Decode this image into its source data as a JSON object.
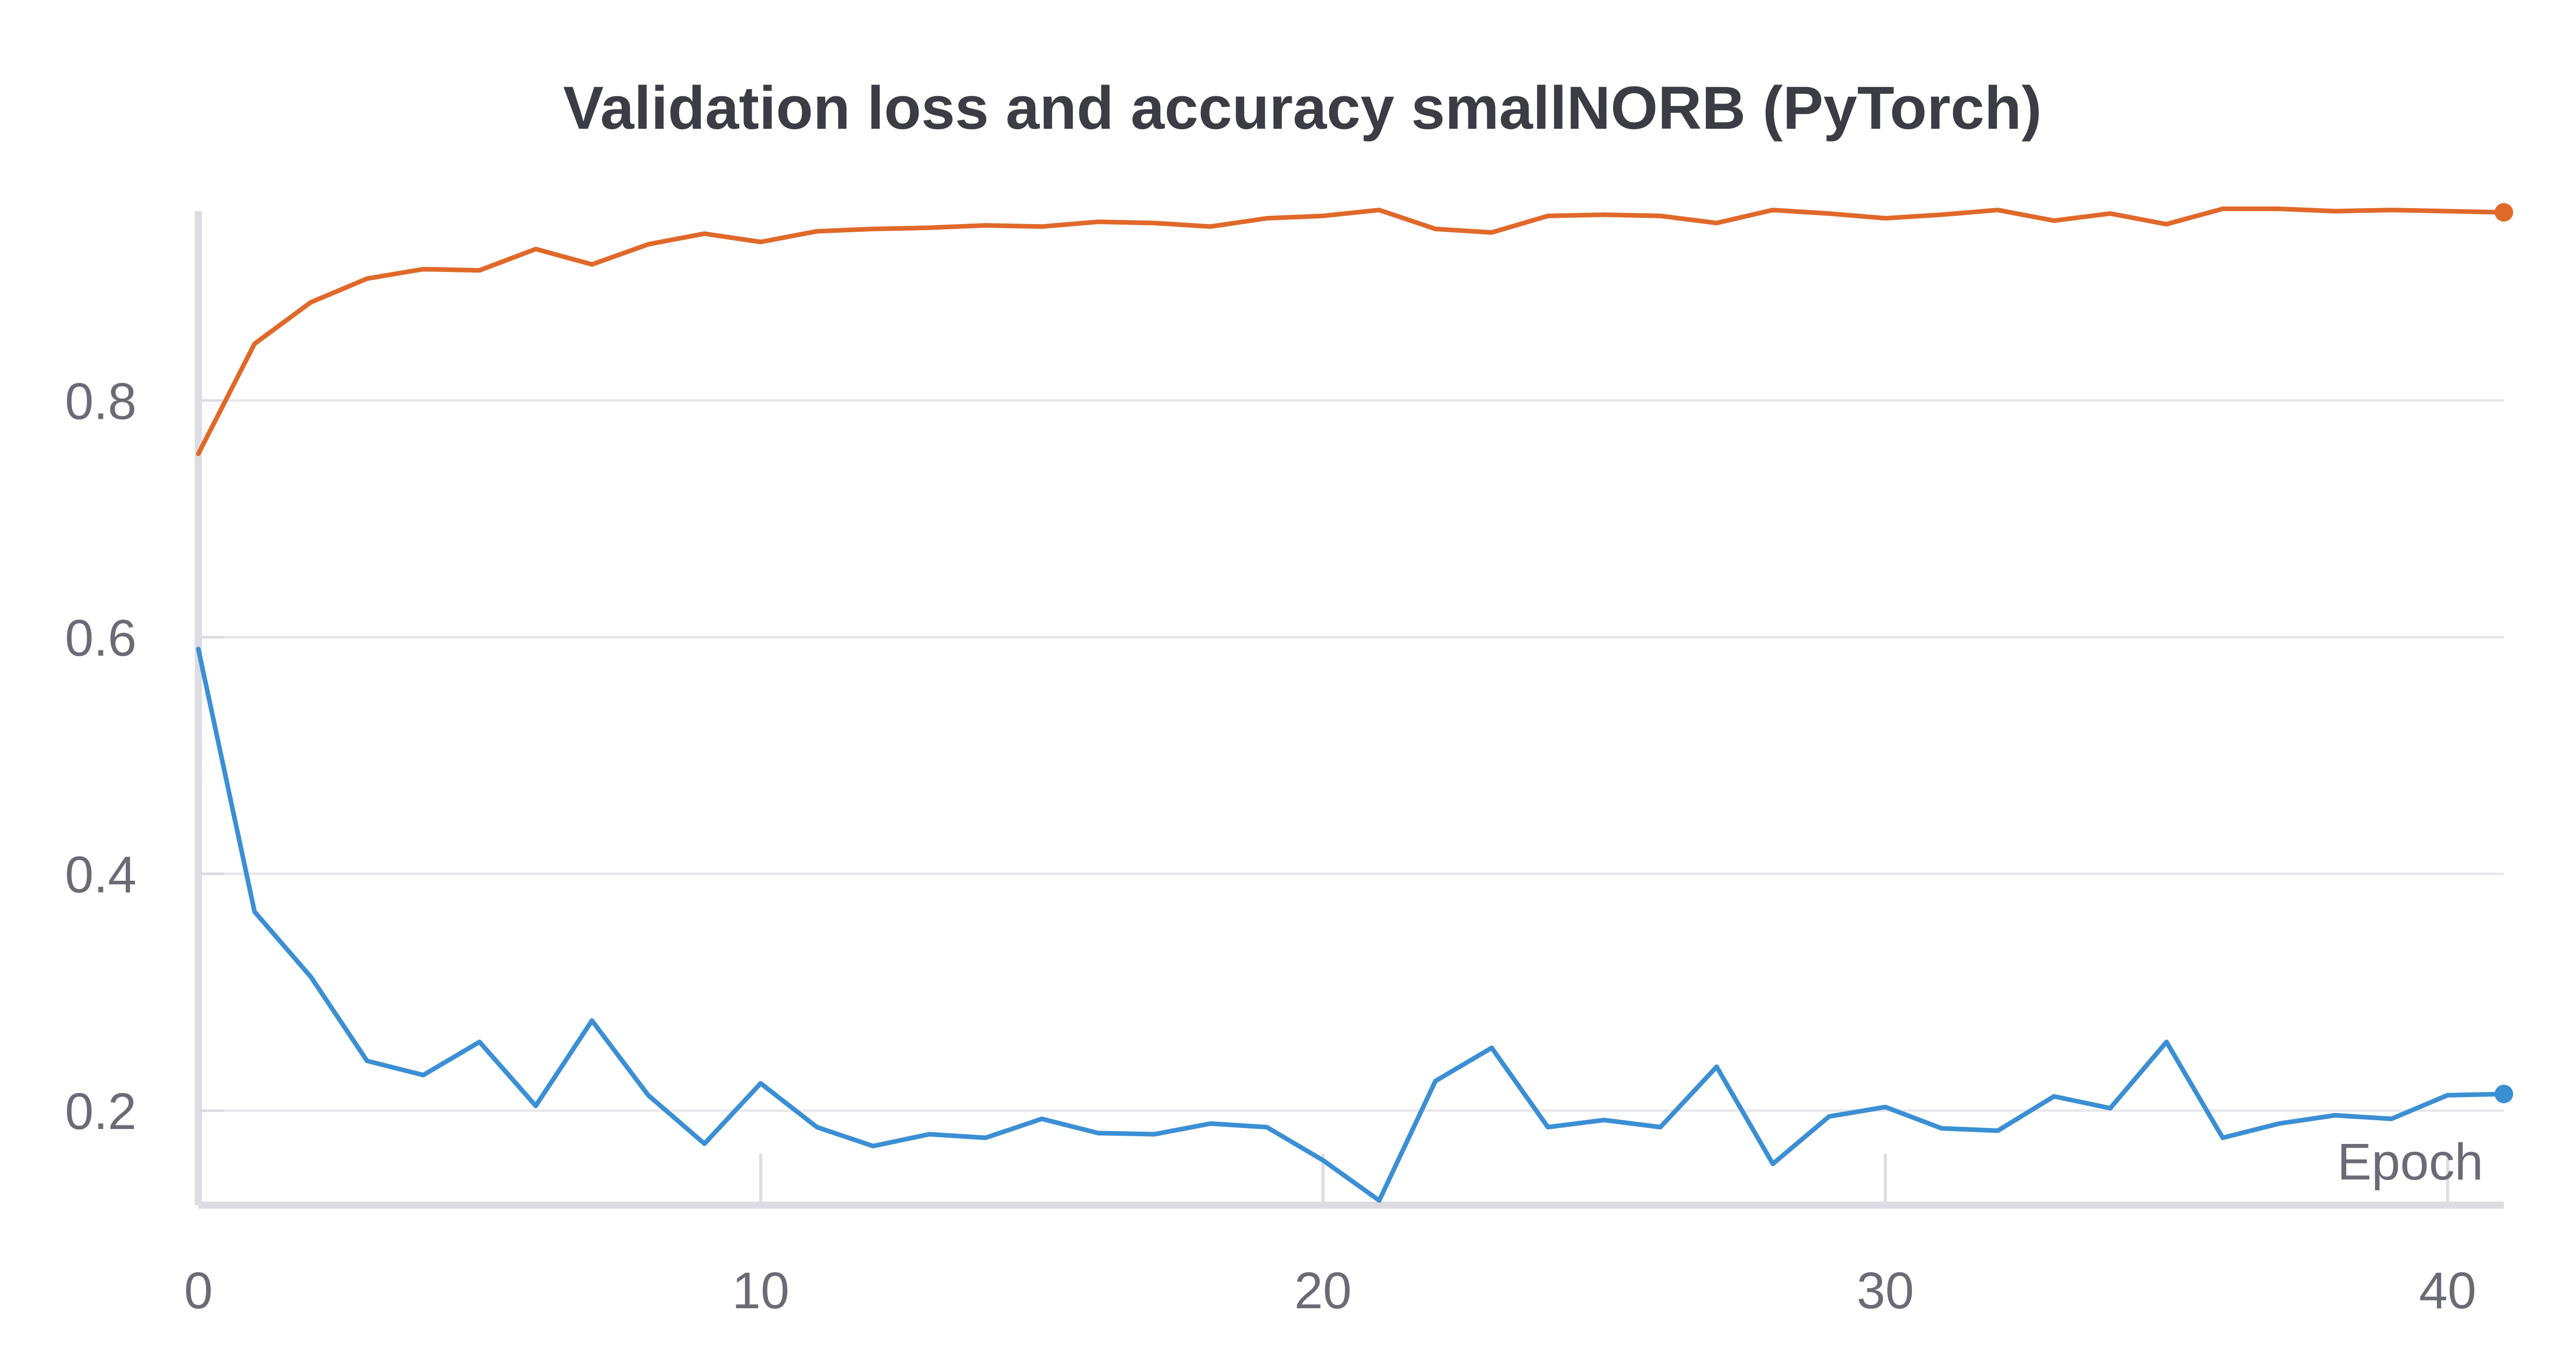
{
  "chart_data": {
    "type": "line",
    "title": "Validation loss and accuracy smallNORB (PyTorch)",
    "xlabel": "Epoch",
    "ylabel": "",
    "xlim": [
      0,
      41
    ],
    "ylim": [
      0.12,
      0.96
    ],
    "x_ticks": [
      0,
      10,
      20,
      30,
      40
    ],
    "y_ticks": [
      0.2,
      0.4,
      0.6,
      0.8
    ],
    "y_tick_labels": [
      "0.2",
      "0.4",
      "0.6",
      "0.8"
    ],
    "grid": "horizontal",
    "x": [
      0,
      1,
      2,
      3,
      4,
      5,
      6,
      7,
      8,
      9,
      10,
      11,
      12,
      13,
      14,
      15,
      16,
      17,
      18,
      19,
      20,
      21,
      22,
      23,
      24,
      25,
      26,
      27,
      28,
      29,
      30,
      31,
      32,
      33,
      34,
      35,
      36,
      37,
      38,
      39,
      40,
      41
    ],
    "series": [
      {
        "color": "#e0692a",
        "values": [
          0.755,
          0.848,
          0.883,
          0.903,
          0.911,
          0.91,
          0.928,
          0.915,
          0.932,
          0.941,
          0.934,
          0.943,
          0.945,
          0.946,
          0.948,
          0.947,
          0.951,
          0.95,
          0.947,
          0.954,
          0.956,
          0.961,
          0.945,
          0.942,
          0.956,
          0.957,
          0.956,
          0.95,
          0.961,
          0.958,
          0.954,
          0.957,
          0.961,
          0.952,
          0.958,
          0.949,
          0.962,
          0.962,
          0.96,
          0.961,
          0.96,
          0.959
        ]
      },
      {
        "color": "#3b8fd4",
        "values": [
          0.59,
          0.368,
          0.313,
          0.242,
          0.23,
          0.258,
          0.204,
          0.276,
          0.213,
          0.172,
          0.223,
          0.186,
          0.17,
          0.18,
          0.177,
          0.193,
          0.181,
          0.18,
          0.189,
          0.186,
          0.158,
          0.124,
          0.225,
          0.253,
          0.186,
          0.192,
          0.186,
          0.237,
          0.155,
          0.195,
          0.203,
          0.185,
          0.183,
          0.212,
          0.202,
          0.258,
          0.177,
          0.189,
          0.196,
          0.193,
          0.213,
          0.214
        ]
      }
    ]
  }
}
